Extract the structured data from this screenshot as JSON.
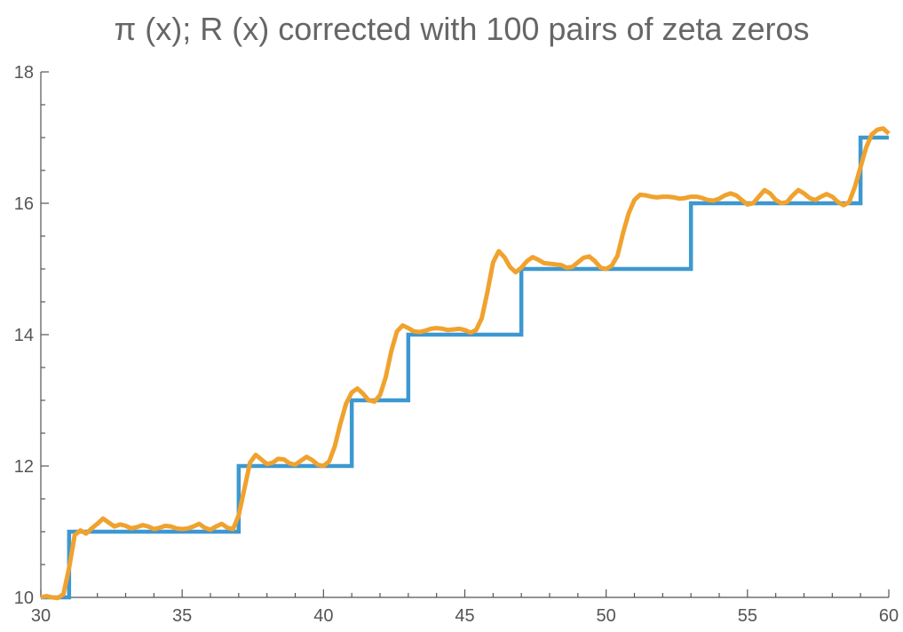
{
  "chart_data": {
    "type": "line",
    "title": "π (x); R (x) corrected with 100 pairs of zeta zeros",
    "xlabel": "",
    "ylabel": "",
    "xlim": [
      30,
      60
    ],
    "ylim": [
      10,
      18
    ],
    "x_ticks": [
      "30",
      "35",
      "40",
      "45",
      "50",
      "55",
      "60"
    ],
    "y_ticks": [
      "10",
      "12",
      "14",
      "16",
      "18"
    ],
    "grid": false,
    "legend": "none",
    "series": [
      {
        "style": "step",
        "color": "#3d98d0",
        "points": [
          [
            30,
            10
          ],
          [
            31,
            10
          ],
          [
            31,
            11
          ],
          [
            37,
            11
          ],
          [
            37,
            12
          ],
          [
            41,
            12
          ],
          [
            41,
            13
          ],
          [
            43,
            13
          ],
          [
            43,
            14
          ],
          [
            47,
            14
          ],
          [
            47,
            15
          ],
          [
            53,
            15
          ],
          [
            53,
            16
          ],
          [
            59,
            16
          ],
          [
            59,
            17
          ],
          [
            60,
            17
          ]
        ]
      },
      {
        "style": "line",
        "color": "#f0a22e",
        "points": [
          [
            30,
            10
          ],
          [
            30.2,
            10.02
          ],
          [
            30.4,
            10.0
          ],
          [
            30.6,
            9.99
          ],
          [
            30.8,
            10.05
          ],
          [
            31.0,
            10.45
          ],
          [
            31.2,
            10.95
          ],
          [
            31.4,
            11.02
          ],
          [
            31.6,
            10.97
          ],
          [
            31.8,
            11.05
          ],
          [
            32.0,
            11.12
          ],
          [
            32.2,
            11.2
          ],
          [
            32.4,
            11.14
          ],
          [
            32.6,
            11.08
          ],
          [
            32.8,
            11.11
          ],
          [
            33.0,
            11.09
          ],
          [
            33.2,
            11.05
          ],
          [
            33.4,
            11.07
          ],
          [
            33.6,
            11.1
          ],
          [
            33.8,
            11.08
          ],
          [
            34.0,
            11.04
          ],
          [
            34.2,
            11.06
          ],
          [
            34.4,
            11.09
          ],
          [
            34.6,
            11.08
          ],
          [
            34.8,
            11.05
          ],
          [
            35.0,
            11.04
          ],
          [
            35.2,
            11.05
          ],
          [
            35.4,
            11.08
          ],
          [
            35.6,
            11.12
          ],
          [
            35.8,
            11.06
          ],
          [
            36.0,
            11.03
          ],
          [
            36.2,
            11.08
          ],
          [
            36.4,
            11.12
          ],
          [
            36.6,
            11.06
          ],
          [
            36.8,
            11.04
          ],
          [
            37.0,
            11.25
          ],
          [
            37.2,
            11.65
          ],
          [
            37.4,
            12.05
          ],
          [
            37.6,
            12.17
          ],
          [
            37.8,
            12.1
          ],
          [
            38.0,
            12.03
          ],
          [
            38.2,
            12.05
          ],
          [
            38.4,
            12.11
          ],
          [
            38.6,
            12.1
          ],
          [
            38.8,
            12.04
          ],
          [
            39.0,
            12.02
          ],
          [
            39.2,
            12.08
          ],
          [
            39.4,
            12.14
          ],
          [
            39.6,
            12.09
          ],
          [
            39.8,
            12.02
          ],
          [
            40.0,
            12.0
          ],
          [
            40.2,
            12.07
          ],
          [
            40.4,
            12.3
          ],
          [
            40.6,
            12.65
          ],
          [
            40.8,
            12.95
          ],
          [
            41.0,
            13.12
          ],
          [
            41.2,
            13.18
          ],
          [
            41.4,
            13.1
          ],
          [
            41.6,
            13.0
          ],
          [
            41.8,
            12.98
          ],
          [
            42.0,
            13.08
          ],
          [
            42.2,
            13.35
          ],
          [
            42.4,
            13.75
          ],
          [
            42.6,
            14.05
          ],
          [
            42.8,
            14.14
          ],
          [
            43.0,
            14.1
          ],
          [
            43.2,
            14.05
          ],
          [
            43.4,
            14.04
          ],
          [
            43.6,
            14.06
          ],
          [
            43.8,
            14.09
          ],
          [
            44.0,
            14.1
          ],
          [
            44.2,
            14.09
          ],
          [
            44.4,
            14.07
          ],
          [
            44.6,
            14.08
          ],
          [
            44.8,
            14.09
          ],
          [
            45.0,
            14.07
          ],
          [
            45.2,
            14.03
          ],
          [
            45.4,
            14.07
          ],
          [
            45.6,
            14.25
          ],
          [
            45.8,
            14.65
          ],
          [
            46.0,
            15.1
          ],
          [
            46.2,
            15.27
          ],
          [
            46.4,
            15.18
          ],
          [
            46.6,
            15.03
          ],
          [
            46.8,
            14.95
          ],
          [
            47.0,
            15.02
          ],
          [
            47.2,
            15.12
          ],
          [
            47.4,
            15.18
          ],
          [
            47.6,
            15.14
          ],
          [
            47.8,
            15.09
          ],
          [
            48.0,
            15.08
          ],
          [
            48.2,
            15.07
          ],
          [
            48.4,
            15.06
          ],
          [
            48.6,
            15.02
          ],
          [
            48.8,
            15.03
          ],
          [
            49.0,
            15.1
          ],
          [
            49.2,
            15.17
          ],
          [
            49.4,
            15.19
          ],
          [
            49.6,
            15.12
          ],
          [
            49.8,
            15.02
          ],
          [
            50.0,
            15.0
          ],
          [
            50.2,
            15.05
          ],
          [
            50.4,
            15.2
          ],
          [
            50.6,
            15.55
          ],
          [
            50.8,
            15.85
          ],
          [
            51.0,
            16.05
          ],
          [
            51.2,
            16.13
          ],
          [
            51.4,
            16.12
          ],
          [
            51.6,
            16.1
          ],
          [
            51.8,
            16.09
          ],
          [
            52.0,
            16.1
          ],
          [
            52.2,
            16.1
          ],
          [
            52.4,
            16.09
          ],
          [
            52.6,
            16.07
          ],
          [
            52.8,
            16.08
          ],
          [
            53.0,
            16.1
          ],
          [
            53.2,
            16.1
          ],
          [
            53.4,
            16.08
          ],
          [
            53.6,
            16.05
          ],
          [
            53.8,
            16.04
          ],
          [
            54.0,
            16.07
          ],
          [
            54.2,
            16.12
          ],
          [
            54.4,
            16.15
          ],
          [
            54.6,
            16.12
          ],
          [
            54.8,
            16.05
          ],
          [
            55.0,
            15.98
          ],
          [
            55.2,
            16.0
          ],
          [
            55.4,
            16.1
          ],
          [
            55.6,
            16.2
          ],
          [
            55.8,
            16.15
          ],
          [
            56.0,
            16.05
          ],
          [
            56.2,
            16.0
          ],
          [
            56.4,
            16.02
          ],
          [
            56.6,
            16.12
          ],
          [
            56.8,
            16.2
          ],
          [
            57.0,
            16.15
          ],
          [
            57.2,
            16.08
          ],
          [
            57.4,
            16.05
          ],
          [
            57.6,
            16.1
          ],
          [
            57.8,
            16.14
          ],
          [
            58.0,
            16.1
          ],
          [
            58.2,
            16.02
          ],
          [
            58.4,
            15.97
          ],
          [
            58.6,
            16.02
          ],
          [
            58.8,
            16.25
          ],
          [
            59.0,
            16.55
          ],
          [
            59.2,
            16.85
          ],
          [
            59.4,
            17.05
          ],
          [
            59.6,
            17.12
          ],
          [
            59.8,
            17.14
          ],
          [
            60.0,
            17.06
          ]
        ]
      }
    ]
  }
}
